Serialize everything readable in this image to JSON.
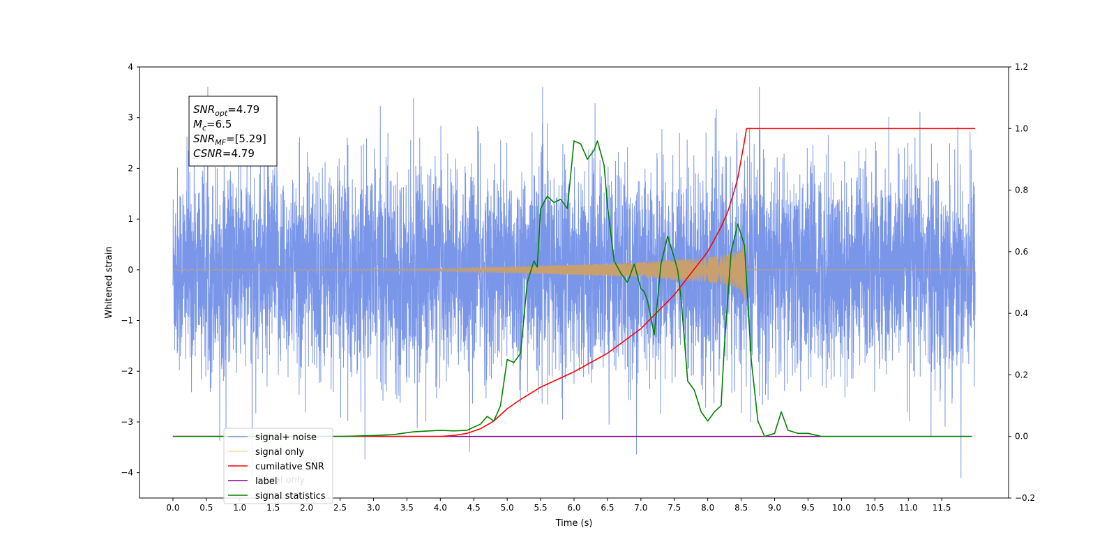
{
  "chart_data": {
    "type": "line",
    "xlabel": "Time (s)",
    "ylabel": "Whitened strain",
    "xlim": [
      -0.5,
      12.5
    ],
    "ylim": [
      -4.5,
      4
    ],
    "y2lim": [
      -0.2,
      1.2
    ],
    "x_ticks": [
      "0.0",
      "0.5",
      "1.0",
      "1.5",
      "2.0",
      "2.5",
      "3.0",
      "3.5",
      "4.0",
      "4.5",
      "5.0",
      "5.5",
      "6.0",
      "6.5",
      "7.0",
      "7.5",
      "8.0",
      "8.5",
      "9.0",
      "9.5",
      "10.0",
      "10.5",
      "11.0",
      "11.5"
    ],
    "y_ticks": [
      "4",
      "3",
      "2",
      "1",
      "0",
      "−1",
      "−2",
      "−3",
      "−4"
    ],
    "y2_ticks": [
      "1.2",
      "1.0",
      "0.8",
      "0.6",
      "0.4",
      "0.2",
      "0.0",
      "−0.2"
    ],
    "legend": {
      "placement": "lower-left",
      "entries": [
        "signal+ noise",
        "signal only",
        "cumilative SNR",
        "label",
        "signal statistics"
      ]
    },
    "hidden_label_text": "signal only",
    "annotation": [
      {
        "base": "SNR",
        "sub": "opt",
        "value": "=4.79"
      },
      {
        "base": "M",
        "sub": "c",
        "value": "=6.5"
      },
      {
        "base": "SNR",
        "sub": "MF",
        "value": "=[5.29]"
      },
      {
        "base": "CSNR",
        "sub": "",
        "value": "=4.79"
      }
    ],
    "series": [
      {
        "name": "signal+ noise",
        "axis": "left",
        "color": "#7a96e8",
        "x_range": [
          0.0,
          12.0
        ],
        "envelope": "noise",
        "note_values": {
          "typical_band": [
            -1.6,
            1.6
          ],
          "peak_max": 3.6,
          "peak_min": -4.1
        }
      },
      {
        "name": "signal only",
        "axis": "left",
        "color": "#c8a06e",
        "envelope_points": [
          [
            0.0,
            0.01
          ],
          [
            2.0,
            0.015
          ],
          [
            4.0,
            0.03
          ],
          [
            5.0,
            0.06
          ],
          [
            6.0,
            0.1
          ],
          [
            7.0,
            0.15
          ],
          [
            7.5,
            0.2
          ],
          [
            8.0,
            0.25
          ],
          [
            8.3,
            0.3
          ],
          [
            8.5,
            0.4
          ],
          [
            8.56,
            0.65
          ],
          [
            8.58,
            0.0
          ],
          [
            12.0,
            0.0
          ]
        ]
      },
      {
        "name": "cumilative SNR",
        "axis": "right",
        "color": "#ff0000",
        "points": [
          [
            0.0,
            0.0
          ],
          [
            4.0,
            0.0
          ],
          [
            4.2,
            0.003
          ],
          [
            4.4,
            0.01
          ],
          [
            4.6,
            0.025
          ],
          [
            4.8,
            0.05
          ],
          [
            5.0,
            0.09
          ],
          [
            5.2,
            0.12
          ],
          [
            5.5,
            0.16
          ],
          [
            6.0,
            0.21
          ],
          [
            6.5,
            0.27
          ],
          [
            7.0,
            0.35
          ],
          [
            7.5,
            0.46
          ],
          [
            8.0,
            0.6
          ],
          [
            8.2,
            0.68
          ],
          [
            8.3,
            0.73
          ],
          [
            8.4,
            0.8
          ],
          [
            8.45,
            0.84
          ],
          [
            8.5,
            0.9
          ],
          [
            8.55,
            0.96
          ],
          [
            8.58,
            1.0
          ],
          [
            12.0,
            1.0
          ]
        ]
      },
      {
        "name": "label",
        "axis": "right",
        "color": "#800080",
        "points": [
          [
            0.0,
            0.0
          ],
          [
            11.95,
            0.0
          ]
        ]
      },
      {
        "name": "signal statistics",
        "axis": "right",
        "color": "#008000",
        "points": [
          [
            0.0,
            0.0
          ],
          [
            2.5,
            0.0
          ],
          [
            3.0,
            0.003
          ],
          [
            3.3,
            0.006
          ],
          [
            3.6,
            0.015
          ],
          [
            4.0,
            0.02
          ],
          [
            4.2,
            0.018
          ],
          [
            4.4,
            0.02
          ],
          [
            4.6,
            0.04
          ],
          [
            4.7,
            0.065
          ],
          [
            4.8,
            0.05
          ],
          [
            4.9,
            0.1
          ],
          [
            5.0,
            0.25
          ],
          [
            5.1,
            0.24
          ],
          [
            5.2,
            0.27
          ],
          [
            5.3,
            0.5
          ],
          [
            5.4,
            0.57
          ],
          [
            5.45,
            0.55
          ],
          [
            5.5,
            0.74
          ],
          [
            5.6,
            0.78
          ],
          [
            5.7,
            0.76
          ],
          [
            5.8,
            0.77
          ],
          [
            5.9,
            0.74
          ],
          [
            6.0,
            0.96
          ],
          [
            6.1,
            0.95
          ],
          [
            6.2,
            0.9
          ],
          [
            6.3,
            0.93
          ],
          [
            6.35,
            0.96
          ],
          [
            6.45,
            0.88
          ],
          [
            6.5,
            0.75
          ],
          [
            6.6,
            0.57
          ],
          [
            6.7,
            0.53
          ],
          [
            6.8,
            0.5
          ],
          [
            6.9,
            0.56
          ],
          [
            7.0,
            0.48
          ],
          [
            7.05,
            0.47
          ],
          [
            7.1,
            0.44
          ],
          [
            7.2,
            0.33
          ],
          [
            7.3,
            0.56
          ],
          [
            7.4,
            0.65
          ],
          [
            7.5,
            0.58
          ],
          [
            7.55,
            0.54
          ],
          [
            7.6,
            0.45
          ],
          [
            7.7,
            0.18
          ],
          [
            7.8,
            0.15
          ],
          [
            7.9,
            0.08
          ],
          [
            8.0,
            0.05
          ],
          [
            8.1,
            0.08
          ],
          [
            8.2,
            0.1
          ],
          [
            8.25,
            0.3
          ],
          [
            8.35,
            0.6
          ],
          [
            8.45,
            0.69
          ],
          [
            8.55,
            0.62
          ],
          [
            8.65,
            0.25
          ],
          [
            8.75,
            0.05
          ],
          [
            8.85,
            0.0
          ],
          [
            9.0,
            0.01
          ],
          [
            9.1,
            0.08
          ],
          [
            9.2,
            0.02
          ],
          [
            9.35,
            0.01
          ],
          [
            9.5,
            0.01
          ],
          [
            9.7,
            0.0
          ],
          [
            11.95,
            0.0
          ]
        ]
      }
    ]
  }
}
